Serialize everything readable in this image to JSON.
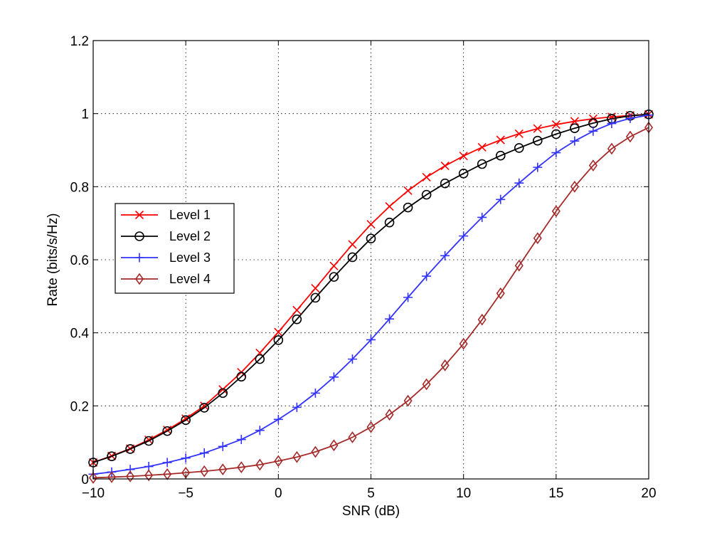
{
  "chart_data": {
    "type": "line",
    "title": "",
    "xlabel": "SNR (dB)",
    "ylabel": "Rate (bits/s/Hz)",
    "xlim": [
      -10,
      20
    ],
    "ylim": [
      0,
      1.2
    ],
    "grid": true,
    "legend_position": "middle-left",
    "x": [
      -10,
      -9,
      -8,
      -7,
      -6,
      -5,
      -4,
      -3,
      -2,
      -1,
      0,
      1,
      2,
      3,
      4,
      5,
      6,
      7,
      8,
      9,
      10,
      11,
      12,
      13,
      14,
      15,
      16,
      17,
      18,
      19,
      20
    ],
    "x_ticks": [
      -10,
      -5,
      0,
      5,
      10,
      15,
      20
    ],
    "x_tick_labels": [
      "−10",
      "−5",
      "0",
      "5",
      "10",
      "15",
      "20"
    ],
    "y_ticks": [
      0,
      0.2,
      0.4,
      0.6,
      0.8,
      1,
      1.2
    ],
    "y_tick_labels": [
      "0",
      "0.2",
      "0.4",
      "0.6",
      "0.8",
      "1",
      "1.2"
    ],
    "series": [
      {
        "name": "Level 1",
        "color": "#ff0000",
        "marker": "x",
        "values": [
          0.045,
          0.063,
          0.083,
          0.107,
          0.134,
          0.165,
          0.2,
          0.245,
          0.292,
          0.345,
          0.402,
          0.462,
          0.522,
          0.583,
          0.642,
          0.697,
          0.746,
          0.789,
          0.826,
          0.857,
          0.884,
          0.908,
          0.928,
          0.945,
          0.959,
          0.97,
          0.979,
          0.986,
          0.991,
          0.995,
          0.998
        ]
      },
      {
        "name": "Level 2",
        "color": "#000000",
        "marker": "o",
        "values": [
          0.045,
          0.062,
          0.082,
          0.104,
          0.131,
          0.161,
          0.195,
          0.235,
          0.28,
          0.328,
          0.38,
          0.437,
          0.496,
          0.553,
          0.607,
          0.658,
          0.702,
          0.743,
          0.778,
          0.809,
          0.836,
          0.862,
          0.885,
          0.906,
          0.926,
          0.944,
          0.96,
          0.974,
          0.986,
          0.994,
          0.998
        ]
      },
      {
        "name": "Level 3",
        "color": "#3333ff",
        "marker": "+",
        "values": [
          0.013,
          0.019,
          0.026,
          0.034,
          0.045,
          0.057,
          0.071,
          0.089,
          0.108,
          0.133,
          0.163,
          0.196,
          0.235,
          0.279,
          0.328,
          0.381,
          0.438,
          0.497,
          0.555,
          0.611,
          0.665,
          0.716,
          0.765,
          0.81,
          0.853,
          0.893,
          0.925,
          0.952,
          0.973,
          0.987,
          0.996
        ]
      },
      {
        "name": "Level 4",
        "color": "#a52a2a",
        "marker": "diamond",
        "values": [
          0.003,
          0.005,
          0.007,
          0.01,
          0.013,
          0.017,
          0.021,
          0.026,
          0.032,
          0.039,
          0.049,
          0.06,
          0.074,
          0.092,
          0.114,
          0.142,
          0.176,
          0.214,
          0.259,
          0.311,
          0.37,
          0.436,
          0.508,
          0.584,
          0.659,
          0.733,
          0.8,
          0.858,
          0.904,
          0.937,
          0.962
        ]
      }
    ]
  }
}
